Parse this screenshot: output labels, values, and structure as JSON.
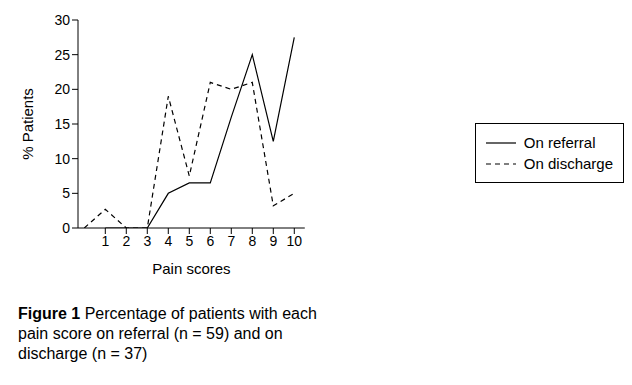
{
  "chart_data": {
    "type": "line",
    "title": "Figure 1",
    "subtitle": "Percentage of patients with each pain score on referral (n = 59) and on discharge (n = 37)",
    "x_label": "Pain scores",
    "y_label": "% Patients",
    "x": [
      0,
      1,
      2,
      3,
      4,
      5,
      6,
      7,
      8,
      9,
      10
    ],
    "series": [
      {
        "name": "On referral",
        "color": "#000000",
        "line_style": "solid",
        "marker": "none",
        "values": [
          null,
          0,
          0,
          0,
          5,
          6.5,
          6.5,
          16,
          25,
          12.5,
          27.5
        ]
      },
      {
        "name": "On discharge",
        "color": "#000000",
        "line_style": "dashed",
        "marker": "none",
        "values": [
          0,
          2.7,
          0,
          0,
          19,
          7.5,
          21,
          20,
          21,
          3.2,
          5
        ]
      }
    ],
    "xlim": [
      -0.3,
      10.5
    ],
    "xticks": [
      1,
      2,
      3,
      4,
      5,
      6,
      7,
      8,
      9,
      10
    ],
    "ylim": [
      0,
      30
    ],
    "yticks": [
      0,
      5,
      10,
      15,
      20,
      25,
      30
    ],
    "grid": false,
    "legend": "right"
  }
}
